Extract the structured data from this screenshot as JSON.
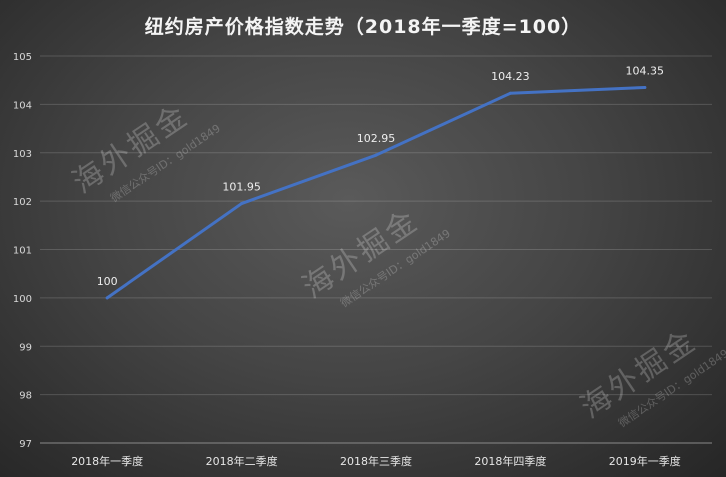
{
  "chart_data": {
    "type": "line",
    "title": "纽约房产价格指数走势（2018年一季度=100）",
    "categories": [
      "2018年一季度",
      "2018年二季度",
      "2018年三季度",
      "2018年四季度",
      "2019年一季度"
    ],
    "values": [
      100,
      101.95,
      102.95,
      104.23,
      104.35
    ],
    "data_labels": [
      "100",
      "101.95",
      "102.95",
      "104.23",
      "104.35"
    ],
    "yticks": [
      "97",
      "98",
      "99",
      "100",
      "101",
      "102",
      "103",
      "104",
      "105"
    ],
    "ylim": [
      97,
      105
    ],
    "xlabel": "",
    "ylabel": "",
    "grid": true,
    "line_color": "#4472c4"
  },
  "watermarks": [
    {
      "main": "海外掘金",
      "sub": "微信公众号ID：gold1849"
    },
    {
      "main": "海外掘金",
      "sub": "微信公众号ID：gold1849"
    },
    {
      "main": "海外掘金",
      "sub": "微信公众号ID：gold1849"
    }
  ]
}
